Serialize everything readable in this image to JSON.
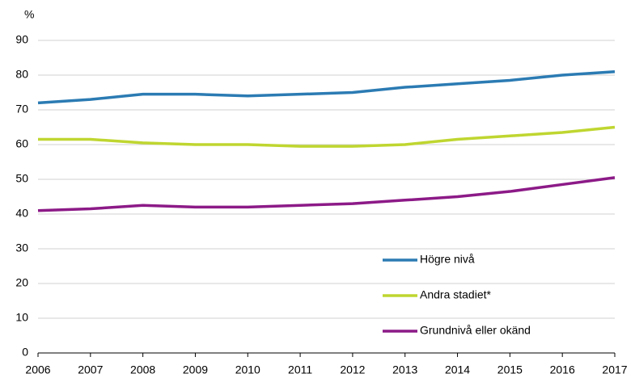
{
  "chart_data": {
    "type": "line",
    "y_axis_label": "%",
    "categories": [
      "2006",
      "2007",
      "2008",
      "2009",
      "2010",
      "2011",
      "2012",
      "2013",
      "2014",
      "2015",
      "2016",
      "2017"
    ],
    "series": [
      {
        "name": "Högre nivå",
        "color": "#2b7bb3",
        "values": [
          72,
          73,
          74.5,
          74.5,
          74,
          74.5,
          75,
          76.5,
          77.5,
          78.5,
          80,
          81
        ]
      },
      {
        "name": "Andra stadiet*",
        "color": "#bfd630",
        "values": [
          61.5,
          61.5,
          60.5,
          60,
          60,
          59.5,
          59.5,
          60,
          61.5,
          62.5,
          63.5,
          65
        ]
      },
      {
        "name": "Grundnivå eller okänd",
        "color": "#8c1a87",
        "values": [
          41,
          41.5,
          42.5,
          42,
          42,
          42.5,
          43,
          44,
          45,
          46.5,
          48.5,
          50.5
        ]
      }
    ],
    "ylim": [
      0,
      90
    ],
    "yticks": [
      0,
      10,
      20,
      30,
      40,
      50,
      60,
      70,
      80,
      90
    ],
    "grid": true
  }
}
